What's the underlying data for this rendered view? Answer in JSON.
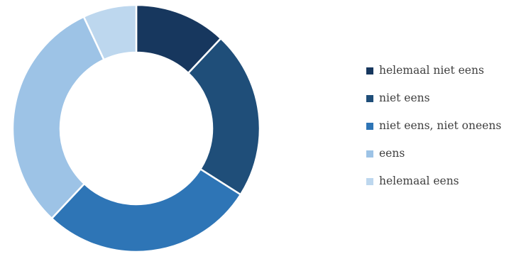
{
  "chart_data": {
    "type": "pie",
    "donut": true,
    "categories": [
      "helemaal niet eens",
      "niet eens",
      "niet eens, niet oneens",
      "eens",
      "helemaal eens"
    ],
    "values": [
      12,
      22,
      28,
      31,
      7
    ],
    "colors": [
      "#17375e",
      "#1f4e79",
      "#2e75b6",
      "#9dc3e6",
      "#bdd7ee"
    ],
    "legend_position": "right"
  }
}
